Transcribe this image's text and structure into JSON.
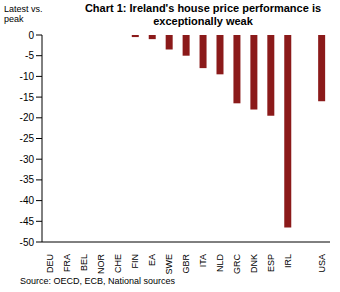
{
  "chart_data": {
    "type": "bar",
    "title": "Chart 1: Ireland's house price performance is exceptionally weak",
    "y_label": "Latest vs. peak",
    "source": "Source: OECD, ECB, National sources",
    "categories": [
      "DEU",
      "FRA",
      "BEL",
      "NOR",
      "CHE",
      "FIN",
      "EA",
      "SWE",
      "GBR",
      "ITA",
      "NLD",
      "GRC",
      "DNK",
      "ESP",
      "IRL",
      null,
      "USA"
    ],
    "values": [
      0,
      0,
      0,
      0,
      0,
      -0.5,
      -1,
      -3.5,
      -5,
      -8,
      -9.5,
      -16.5,
      -18,
      -19.5,
      -46.5,
      null,
      -16
    ],
    "color": "#8b1a1a",
    "ylim": [
      -50,
      0
    ],
    "yticks": [
      -50,
      -45,
      -40,
      -35,
      -30,
      -25,
      -20,
      -15,
      -10,
      -5,
      0
    ],
    "grid": false
  }
}
